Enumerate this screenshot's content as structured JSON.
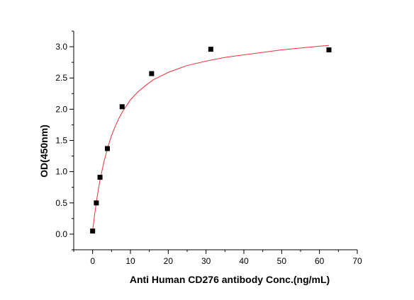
{
  "chart_data": {
    "type": "scatter",
    "title": "",
    "xlabel": "Anti Human CD276 antibody Conc.(ng/mL)",
    "ylabel": "OD(450nm)",
    "xlim": [
      -5,
      70
    ],
    "ylim": [
      -0.25,
      3.25
    ],
    "xticks": [
      0,
      10,
      20,
      30,
      40,
      50,
      60,
      70
    ],
    "xtick_labels": [
      "0",
      "10",
      "20",
      "30",
      "40",
      "50",
      "60",
      "70"
    ],
    "yticks": [
      0.0,
      0.5,
      1.0,
      1.5,
      2.0,
      2.5,
      3.0
    ],
    "ytick_labels": [
      "0.0",
      "0.5",
      "1.0",
      "1.5",
      "2.0",
      "2.5",
      "3.0"
    ],
    "grid": false,
    "legend": "none",
    "series": [
      {
        "kind": "points",
        "marker": "square",
        "color": "#000000",
        "x": [
          0,
          0.98,
          1.95,
          3.9,
          7.8,
          15.6,
          31.25,
          62.5
        ],
        "y": [
          0.05,
          0.5,
          0.91,
          1.37,
          2.04,
          2.57,
          2.96,
          2.95
        ]
      },
      {
        "kind": "fitted-curve",
        "color": "#e8323c",
        "x": [
          0,
          0.5,
          1,
          1.5,
          2,
          3,
          4,
          5,
          6,
          7,
          8,
          10,
          12,
          14,
          16,
          18,
          20,
          25,
          30,
          35,
          40,
          45,
          50,
          55,
          60,
          62.5
        ],
        "y": [
          0.05,
          0.3,
          0.52,
          0.71,
          0.88,
          1.16,
          1.39,
          1.58,
          1.73,
          1.86,
          1.97,
          2.15,
          2.28,
          2.38,
          2.47,
          2.53,
          2.59,
          2.7,
          2.77,
          2.83,
          2.87,
          2.91,
          2.95,
          2.98,
          3.01,
          3.02
        ]
      }
    ]
  }
}
